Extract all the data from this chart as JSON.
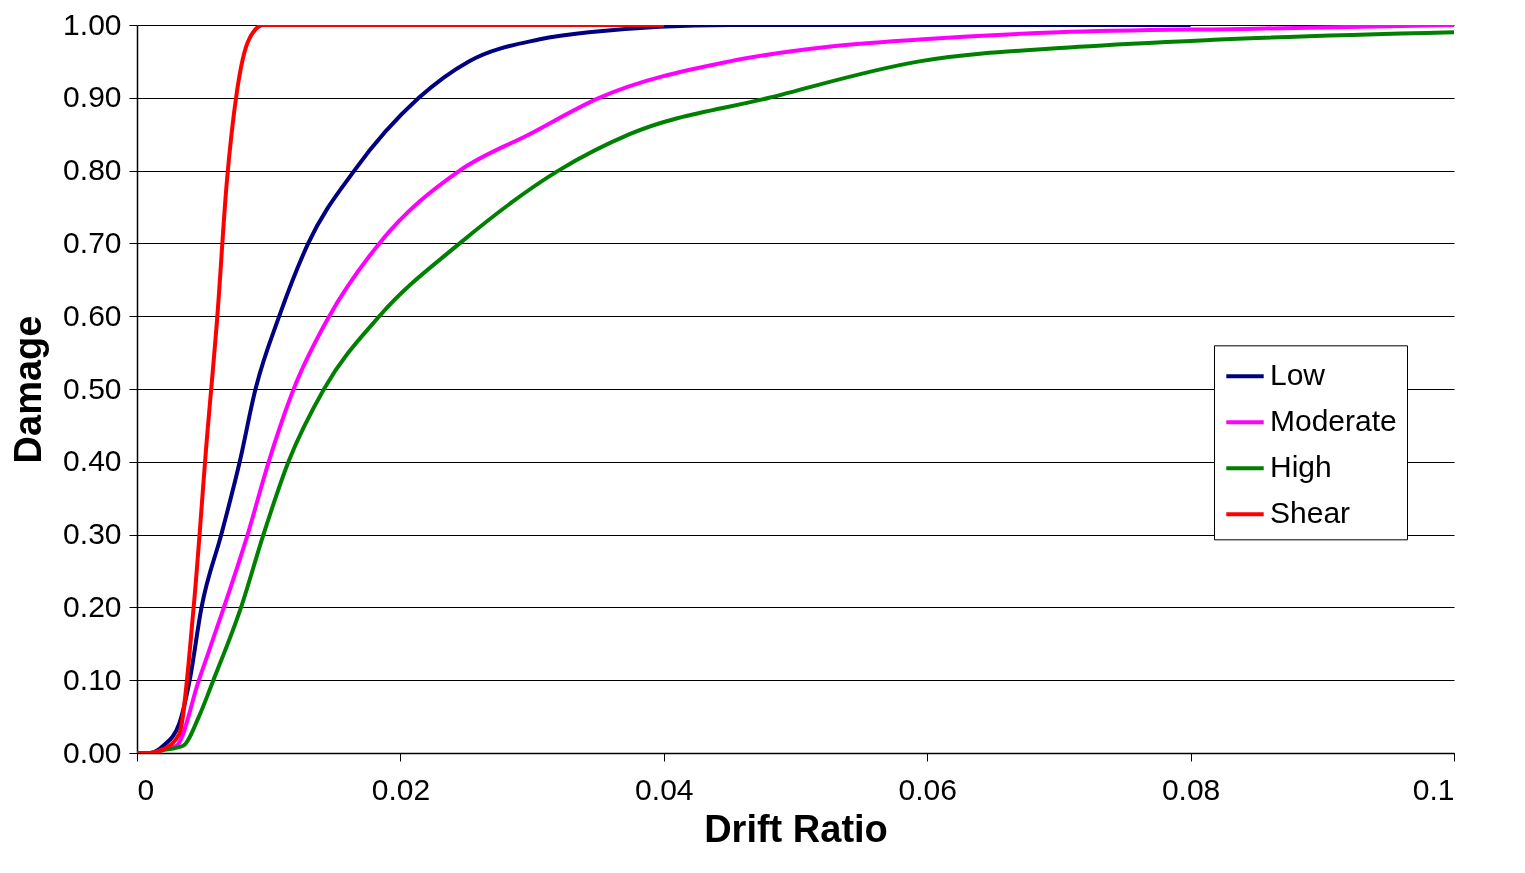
{
  "chart_data": {
    "type": "line",
    "xlabel": "Drift Ratio",
    "ylabel": "Damage",
    "xlim": [
      0,
      0.1
    ],
    "ylim": [
      0,
      1
    ],
    "xticks": [
      0,
      0.02,
      0.04,
      0.06,
      0.08,
      0.1
    ],
    "yticks": [
      {
        "value": 0,
        "label": "0.00"
      },
      {
        "value": 0.1,
        "label": "0.10"
      },
      {
        "value": 0.2,
        "label": "0.20"
      },
      {
        "value": 0.3,
        "label": "0.30"
      },
      {
        "value": 0.4,
        "label": "0.40"
      },
      {
        "value": 0.5,
        "label": "0.50"
      },
      {
        "value": 0.6,
        "label": "0.60"
      },
      {
        "value": 0.7,
        "label": "0.70"
      },
      {
        "value": 0.8,
        "label": "0.80"
      },
      {
        "value": 0.9,
        "label": "0.90"
      },
      {
        "value": 1,
        "label": "1.00"
      }
    ],
    "grid": "y",
    "legend": "right",
    "marker": "none",
    "line_style": "solid",
    "series": [
      {
        "name": "Low",
        "color": "#000080",
        "x": [
          0,
          0.001,
          0.002,
          0.0032,
          0.004,
          0.0049,
          0.0064,
          0.0078,
          0.009,
          0.0108,
          0.013,
          0.0165,
          0.0214,
          0.0252,
          0.0305,
          0.0343,
          0.045,
          0.06,
          0.08
        ],
        "values": [
          0,
          0,
          0.01,
          0.04,
          0.1,
          0.2,
          0.3,
          0.4,
          0.5,
          0.6,
          0.7,
          0.8,
          0.9,
          0.95,
          0.98,
          0.99,
          1,
          1,
          1
        ]
      },
      {
        "name": "Moderate",
        "color": "#ff00ff",
        "x": [
          0,
          0.001,
          0.002,
          0.003,
          0.0047,
          0.0066,
          0.0084,
          0.01,
          0.0119,
          0.0146,
          0.0184,
          0.0245,
          0.0298,
          0.0351,
          0.045,
          0.0525,
          0.0594,
          0.07,
          0.085,
          0.1
        ],
        "values": [
          0,
          0,
          0.005,
          0.01,
          0.1,
          0.2,
          0.3,
          0.4,
          0.5,
          0.6,
          0.7,
          0.8,
          0.85,
          0.9,
          0.95,
          0.97,
          0.98,
          0.99,
          0.995,
          1
        ]
      },
      {
        "name": "High",
        "color": "#008000",
        "x": [
          0,
          0.001,
          0.002,
          0.0035,
          0.0047,
          0.0058,
          0.0079,
          0.0096,
          0.0115,
          0.0142,
          0.0184,
          0.0245,
          0.032,
          0.0374,
          0.048,
          0.0594,
          0.0715,
          0.0822,
          0.1
        ],
        "values": [
          0,
          0,
          0.004,
          0.01,
          0.05,
          0.1,
          0.2,
          0.3,
          0.4,
          0.5,
          0.6,
          0.7,
          0.8,
          0.85,
          0.9,
          0.95,
          0.97,
          0.98,
          0.99
        ]
      },
      {
        "name": "Shear",
        "color": "#ff0000",
        "x": [
          0,
          0.001,
          0.002,
          0.0032,
          0.0043,
          0.0053,
          0.0061,
          0.0068,
          0.0076,
          0.0085,
          0.0096,
          0.02,
          0.04
        ],
        "values": [
          0,
          0,
          0.005,
          0.026,
          0.2,
          0.43,
          0.6,
          0.78,
          0.91,
          0.98,
          1,
          1,
          1
        ]
      }
    ]
  }
}
